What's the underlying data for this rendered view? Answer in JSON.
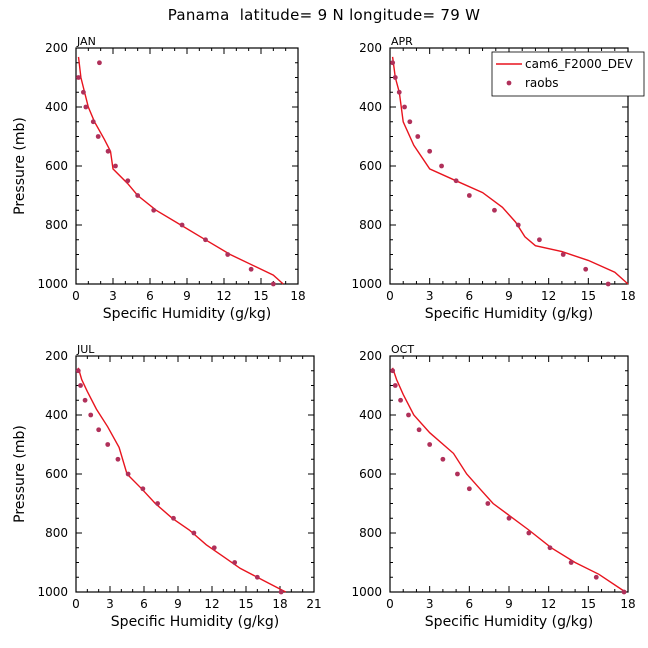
{
  "title": "Panama  latitude= 9 N longitude= 79 W",
  "chart_data": [
    {
      "type": "line",
      "panel_label": "JAN",
      "xlabel": "Specific Humidity (g/kg)",
      "ylabel": "Pressure (mb)",
      "xlim": [
        0,
        18
      ],
      "xticks": [
        "0",
        "3",
        "6",
        "9",
        "12",
        "15",
        "18"
      ],
      "ylim": [
        200,
        1000
      ],
      "yticks": [
        "200",
        "400",
        "600",
        "800",
        "1000"
      ],
      "y_inverted": true,
      "legend": null,
      "series": [
        {
          "name": "cam6_F2000_DEV",
          "style": "line",
          "color": "#e8141e",
          "points": [
            [
              0.2,
              230
            ],
            [
              0.4,
              300
            ],
            [
              0.7,
              350
            ],
            [
              1.0,
              400
            ],
            [
              1.5,
              450
            ],
            [
              2.3,
              510
            ],
            [
              2.8,
              550
            ],
            [
              3.0,
              610
            ],
            [
              4.2,
              660
            ],
            [
              5.0,
              700
            ],
            [
              6.5,
              750
            ],
            [
              8.5,
              800
            ],
            [
              10.5,
              850
            ],
            [
              12.5,
              900
            ],
            [
              14.5,
              940
            ],
            [
              16.0,
              970
            ],
            [
              16.8,
              1000
            ]
          ]
        },
        {
          "name": "raobs",
          "style": "scatter",
          "color": "#b0305a",
          "points": [
            [
              1.9,
              250
            ],
            [
              0.2,
              300
            ],
            [
              0.6,
              350
            ],
            [
              0.8,
              400
            ],
            [
              1.4,
              450
            ],
            [
              1.8,
              500
            ],
            [
              2.6,
              550
            ],
            [
              3.2,
              600
            ],
            [
              4.2,
              650
            ],
            [
              5.0,
              700
            ],
            [
              6.3,
              750
            ],
            [
              8.6,
              800
            ],
            [
              10.5,
              850
            ],
            [
              12.3,
              900
            ],
            [
              14.2,
              950
            ],
            [
              16.0,
              1000
            ]
          ]
        }
      ]
    },
    {
      "type": "line",
      "panel_label": "APR",
      "xlabel": "Specific Humidity (g/kg)",
      "ylabel": "",
      "xlim": [
        0,
        18
      ],
      "xticks": [
        "0",
        "3",
        "6",
        "9",
        "12",
        "15",
        "18"
      ],
      "ylim": [
        200,
        1000
      ],
      "yticks": [
        "200",
        "400",
        "600",
        "800",
        "1000"
      ],
      "y_inverted": true,
      "legend": {
        "position": "top-right",
        "entries": [
          "cam6_F2000_DEV",
          "raobs"
        ]
      },
      "series": [
        {
          "name": "cam6_F2000_DEV",
          "style": "line",
          "color": "#e8141e",
          "points": [
            [
              0.2,
              230
            ],
            [
              0.4,
              300
            ],
            [
              0.7,
              350
            ],
            [
              1.0,
              450
            ],
            [
              1.8,
              530
            ],
            [
              3.0,
              610
            ],
            [
              5.0,
              650
            ],
            [
              7.0,
              690
            ],
            [
              8.5,
              740
            ],
            [
              9.5,
              790
            ],
            [
              10.2,
              840
            ],
            [
              11.0,
              870
            ],
            [
              13.0,
              890
            ],
            [
              15.0,
              920
            ],
            [
              17.0,
              960
            ],
            [
              18.0,
              1000
            ]
          ]
        },
        {
          "name": "raobs",
          "style": "scatter",
          "color": "#b0305a",
          "points": [
            [
              0.2,
              250
            ],
            [
              0.4,
              300
            ],
            [
              0.7,
              350
            ],
            [
              1.1,
              400
            ],
            [
              1.5,
              450
            ],
            [
              2.1,
              500
            ],
            [
              3.0,
              550
            ],
            [
              3.9,
              600
            ],
            [
              5.0,
              650
            ],
            [
              6.0,
              700
            ],
            [
              7.9,
              750
            ],
            [
              9.7,
              800
            ],
            [
              11.3,
              850
            ],
            [
              13.1,
              900
            ],
            [
              14.8,
              950
            ],
            [
              16.5,
              1000
            ]
          ]
        }
      ]
    },
    {
      "type": "line",
      "panel_label": "JUL",
      "xlabel": "Specific Humidity (g/kg)",
      "ylabel": "Pressure (mb)",
      "xlim": [
        0,
        21
      ],
      "xticks": [
        "0",
        "3",
        "6",
        "9",
        "12",
        "15",
        "18",
        "21"
      ],
      "ylim": [
        200,
        1000
      ],
      "yticks": [
        "200",
        "400",
        "600",
        "800",
        "1000"
      ],
      "y_inverted": true,
      "legend": null,
      "series": [
        {
          "name": "cam6_F2000_DEV",
          "style": "line",
          "color": "#e8141e",
          "points": [
            [
              0.2,
              240
            ],
            [
              0.5,
              280
            ],
            [
              1.0,
              320
            ],
            [
              1.8,
              380
            ],
            [
              2.8,
              440
            ],
            [
              3.8,
              510
            ],
            [
              4.5,
              600
            ],
            [
              5.8,
              650
            ],
            [
              7.0,
              700
            ],
            [
              8.5,
              750
            ],
            [
              10.0,
              790
            ],
            [
              11.5,
              840
            ],
            [
              13.0,
              880
            ],
            [
              14.5,
              920
            ],
            [
              16.5,
              960
            ],
            [
              18.5,
              1000
            ]
          ]
        },
        {
          "name": "raobs",
          "style": "scatter",
          "color": "#b0305a",
          "points": [
            [
              0.2,
              250
            ],
            [
              0.4,
              300
            ],
            [
              0.8,
              350
            ],
            [
              1.3,
              400
            ],
            [
              2.0,
              450
            ],
            [
              2.8,
              500
            ],
            [
              3.7,
              550
            ],
            [
              4.6,
              600
            ],
            [
              5.9,
              650
            ],
            [
              7.2,
              700
            ],
            [
              8.6,
              750
            ],
            [
              10.4,
              800
            ],
            [
              12.2,
              850
            ],
            [
              14.0,
              900
            ],
            [
              16.0,
              950
            ],
            [
              18.1,
              1000
            ]
          ]
        }
      ]
    },
    {
      "type": "line",
      "panel_label": "OCT",
      "xlabel": "Specific Humidity (g/kg)",
      "ylabel": "",
      "xlim": [
        0,
        18
      ],
      "xticks": [
        "0",
        "3",
        "6",
        "9",
        "12",
        "15",
        "18"
      ],
      "ylim": [
        200,
        1000
      ],
      "yticks": [
        "200",
        "400",
        "600",
        "800",
        "1000"
      ],
      "y_inverted": true,
      "legend": null,
      "series": [
        {
          "name": "cam6_F2000_DEV",
          "style": "line",
          "color": "#e8141e",
          "points": [
            [
              0.2,
              240
            ],
            [
              0.5,
              280
            ],
            [
              1.0,
              330
            ],
            [
              1.8,
              400
            ],
            [
              3.0,
              460
            ],
            [
              4.8,
              530
            ],
            [
              5.8,
              600
            ],
            [
              6.8,
              650
            ],
            [
              7.8,
              700
            ],
            [
              9.0,
              740
            ],
            [
              10.5,
              790
            ],
            [
              12.2,
              850
            ],
            [
              14.0,
              900
            ],
            [
              15.8,
              940
            ],
            [
              17.8,
              1000
            ]
          ]
        },
        {
          "name": "raobs",
          "style": "scatter",
          "color": "#b0305a",
          "points": [
            [
              0.2,
              250
            ],
            [
              0.4,
              300
            ],
            [
              0.8,
              350
            ],
            [
              1.4,
              400
            ],
            [
              2.2,
              450
            ],
            [
              3.0,
              500
            ],
            [
              4.0,
              550
            ],
            [
              5.1,
              600
            ],
            [
              6.0,
              650
            ],
            [
              7.4,
              700
            ],
            [
              9.0,
              750
            ],
            [
              10.5,
              800
            ],
            [
              12.1,
              850
            ],
            [
              13.7,
              900
            ],
            [
              15.6,
              950
            ],
            [
              17.7,
              1000
            ]
          ]
        }
      ]
    }
  ]
}
